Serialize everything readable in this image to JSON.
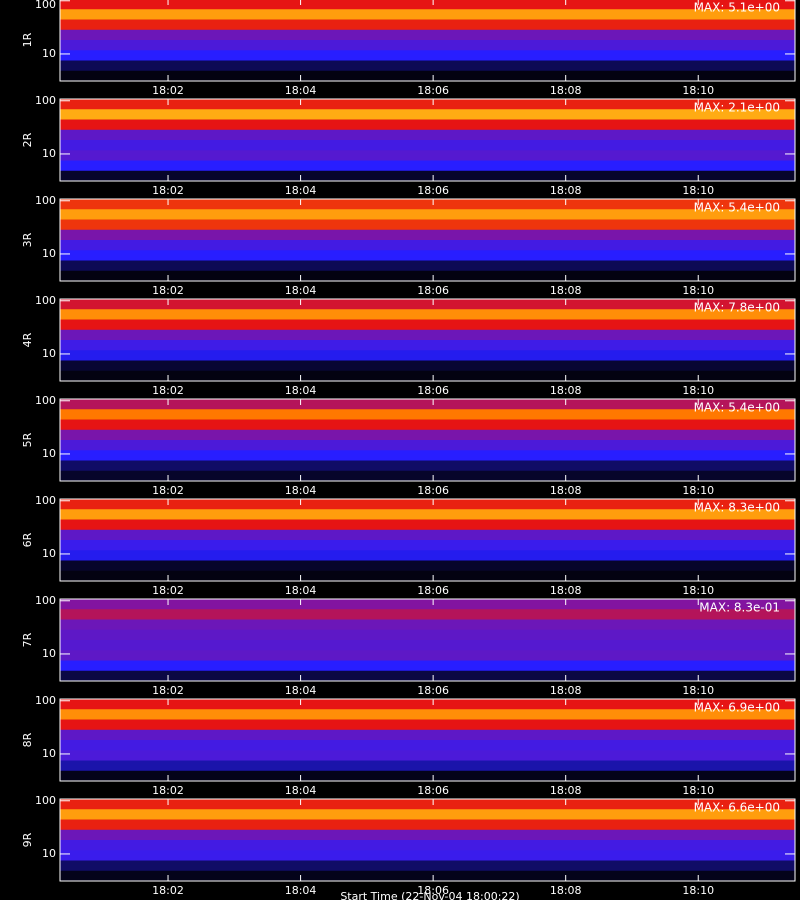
{
  "chart_data": [
    {
      "type": "heatmap",
      "ylabel": "1R",
      "annotation": "MAX: 5.1e+00",
      "ylog": true,
      "xlim": [
        0.37,
        11.46
      ],
      "xticks": [
        {
          "value": 2,
          "label": "18:02"
        },
        {
          "value": 4,
          "label": "18:04"
        },
        {
          "value": 6,
          "label": "18:06"
        },
        {
          "value": 8,
          "label": "18:08"
        },
        {
          "value": 10,
          "label": "18:10"
        }
      ],
      "ylim": [
        3.1,
        108
      ],
      "yticks": [
        10,
        100
      ],
      "intensity": [
        0.6,
        0.8,
        0.62,
        0.45,
        0.38,
        0.3,
        0.1,
        0.02
      ]
    },
    {
      "type": "heatmap",
      "ylabel": "2R",
      "annotation": "MAX: 2.1e+00",
      "ylog": true,
      "xlim": [
        0.37,
        11.46
      ],
      "xticks": [
        {
          "value": 2,
          "label": "18:02"
        },
        {
          "value": 4,
          "label": "18:04"
        },
        {
          "value": 6,
          "label": "18:06"
        },
        {
          "value": 8,
          "label": "18:08"
        },
        {
          "value": 10,
          "label": "18:10"
        }
      ],
      "ylim": [
        3.1,
        108
      ],
      "yticks": [
        10,
        100
      ],
      "intensity": [
        0.62,
        0.82,
        0.6,
        0.42,
        0.36,
        0.4,
        0.3,
        0.05
      ]
    },
    {
      "type": "heatmap",
      "ylabel": "3R",
      "annotation": "MAX: 5.4e+00",
      "ylog": true,
      "xlim": [
        0.37,
        11.46
      ],
      "xticks": [
        {
          "value": 2,
          "label": "18:02"
        },
        {
          "value": 4,
          "label": "18:04"
        },
        {
          "value": 6,
          "label": "18:06"
        },
        {
          "value": 8,
          "label": "18:08"
        },
        {
          "value": 10,
          "label": "18:10"
        }
      ],
      "ylim": [
        3.1,
        108
      ],
      "yticks": [
        10,
        100
      ],
      "intensity": [
        0.65,
        0.8,
        0.65,
        0.48,
        0.36,
        0.3,
        0.1,
        0.02
      ]
    },
    {
      "type": "heatmap",
      "ylabel": "4R",
      "annotation": "MAX: 7.8e+00",
      "ylog": true,
      "xlim": [
        0.37,
        11.46
      ],
      "xticks": [
        {
          "value": 2,
          "label": "18:02"
        },
        {
          "value": 4,
          "label": "18:04"
        },
        {
          "value": 6,
          "label": "18:06"
        },
        {
          "value": 8,
          "label": "18:08"
        },
        {
          "value": 10,
          "label": "18:10"
        }
      ],
      "ylim": [
        3.1,
        108
      ],
      "yticks": [
        10,
        100
      ],
      "intensity": [
        0.58,
        0.78,
        0.6,
        0.45,
        0.35,
        0.28,
        0.06,
        0.02
      ]
    },
    {
      "type": "heatmap",
      "ylabel": "5R",
      "annotation": "MAX: 5.4e+00",
      "ylog": true,
      "xlim": [
        0.37,
        11.46
      ],
      "xticks": [
        {
          "value": 2,
          "label": "18:02"
        },
        {
          "value": 4,
          "label": "18:04"
        },
        {
          "value": 6,
          "label": "18:06"
        },
        {
          "value": 8,
          "label": "18:08"
        },
        {
          "value": 10,
          "label": "18:10"
        }
      ],
      "ylim": [
        3.1,
        108
      ],
      "yticks": [
        10,
        100
      ],
      "intensity": [
        0.55,
        0.75,
        0.6,
        0.48,
        0.38,
        0.3,
        0.12,
        0.05
      ]
    },
    {
      "type": "heatmap",
      "ylabel": "6R",
      "annotation": "MAX: 8.3e+00",
      "ylog": true,
      "xlim": [
        0.37,
        11.46
      ],
      "xticks": [
        {
          "value": 2,
          "label": "18:02"
        },
        {
          "value": 4,
          "label": "18:04"
        },
        {
          "value": 6,
          "label": "18:06"
        },
        {
          "value": 8,
          "label": "18:08"
        },
        {
          "value": 10,
          "label": "18:10"
        }
      ],
      "ylim": [
        3.1,
        108
      ],
      "yticks": [
        10,
        100
      ],
      "intensity": [
        0.62,
        0.8,
        0.6,
        0.42,
        0.34,
        0.28,
        0.05,
        0.02
      ]
    },
    {
      "type": "heatmap",
      "ylabel": "7R",
      "annotation": "MAX: 8.3e-01",
      "ylog": true,
      "xlim": [
        0.37,
        11.46
      ],
      "xticks": [
        {
          "value": 2,
          "label": "18:02"
        },
        {
          "value": 4,
          "label": "18:04"
        },
        {
          "value": 6,
          "label": "18:06"
        },
        {
          "value": 8,
          "label": "18:08"
        },
        {
          "value": 10,
          "label": "18:10"
        }
      ],
      "ylim": [
        3.1,
        108
      ],
      "yticks": [
        10,
        100
      ],
      "intensity": [
        0.5,
        0.55,
        0.45,
        0.42,
        0.4,
        0.42,
        0.3,
        0.08
      ]
    },
    {
      "type": "heatmap",
      "ylabel": "8R",
      "annotation": "MAX: 6.9e+00",
      "ylog": true,
      "xlim": [
        0.37,
        11.46
      ],
      "xticks": [
        {
          "value": 2,
          "label": "18:02"
        },
        {
          "value": 4,
          "label": "18:04"
        },
        {
          "value": 6,
          "label": "18:06"
        },
        {
          "value": 8,
          "label": "18:08"
        },
        {
          "value": 10,
          "label": "18:10"
        }
      ],
      "ylim": [
        3.1,
        108
      ],
      "yticks": [
        10,
        100
      ],
      "intensity": [
        0.6,
        0.78,
        0.6,
        0.42,
        0.36,
        0.38,
        0.2,
        0.03
      ]
    },
    {
      "type": "heatmap",
      "ylabel": "9R",
      "annotation": "MAX: 6.6e+00",
      "ylog": true,
      "xlim": [
        0.37,
        11.46
      ],
      "xticks": [
        {
          "value": 2,
          "label": "18:02"
        },
        {
          "value": 4,
          "label": "18:04"
        },
        {
          "value": 6,
          "label": "18:06"
        },
        {
          "value": 8,
          "label": "18:08"
        },
        {
          "value": 10,
          "label": "18:10"
        }
      ],
      "ylim": [
        3.1,
        108
      ],
      "yticks": [
        10,
        100
      ],
      "intensity": [
        0.62,
        0.8,
        0.62,
        0.45,
        0.36,
        0.34,
        0.12,
        0.03
      ]
    }
  ],
  "xlabel": "Start Time (22-Nov-04 18:00:22)"
}
